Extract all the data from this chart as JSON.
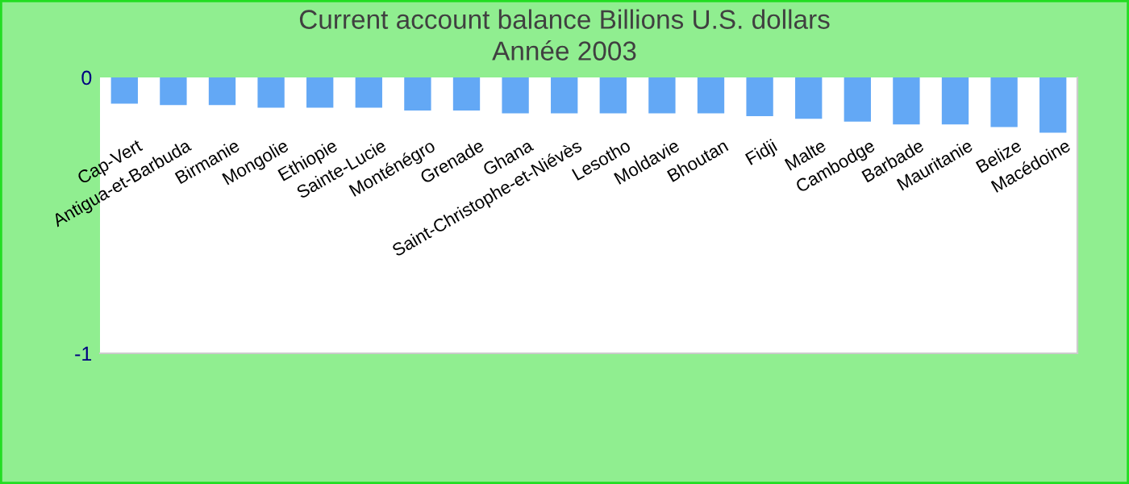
{
  "chart_data": {
    "type": "bar",
    "title": "Current account balance Billions U.S. dollars",
    "subtitle": "Année 2003",
    "categories": [
      "Cap-Vert",
      "Antigua-et-Barbuda",
      "Birmanie",
      "Mongolie",
      "Ethiopie",
      "Sainte-Lucie",
      "Monténégro",
      "Grenade",
      "Ghana",
      "Saint-Christophe-et-Niévès",
      "Lesotho",
      "Moldavie",
      "Bhoutan",
      "Fidji",
      "Malte",
      "Cambodge",
      "Barbade",
      "Mauritanie",
      "Belize",
      "Macédoine"
    ],
    "values": [
      -0.095,
      -0.1,
      -0.1,
      -0.11,
      -0.11,
      -0.11,
      -0.12,
      -0.12,
      -0.13,
      -0.13,
      -0.13,
      -0.13,
      -0.13,
      -0.14,
      -0.15,
      -0.16,
      -0.17,
      -0.17,
      -0.18,
      -0.2
    ],
    "color": "#63a8f5",
    "ylim": [
      -1,
      0
    ],
    "yticks": [
      -1,
      0
    ],
    "grid": false
  }
}
